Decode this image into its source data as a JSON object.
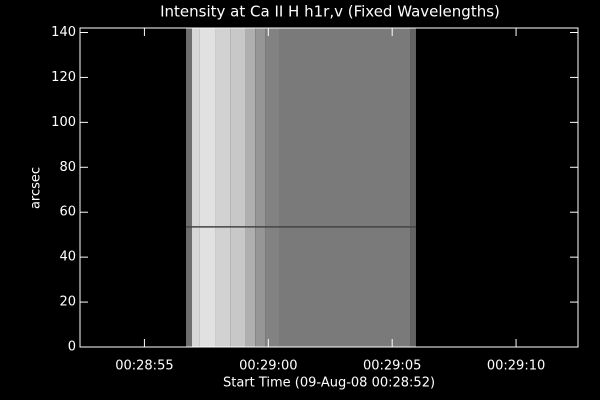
{
  "chart_data": {
    "type": "image",
    "title": "Intensity at Ca II H h1r,v (Fixed Wavelengths)",
    "xlabel": "Start Time (09-Aug-08 00:28:52)",
    "ylabel": "arcsec",
    "xlim": [
      0.4,
      20.5
    ],
    "xticks": [
      {
        "value": 3,
        "label": "00:28:55"
      },
      {
        "value": 8,
        "label": "00:29:00"
      },
      {
        "value": 13,
        "label": "00:29:05"
      },
      {
        "value": 18,
        "label": "00:29:10"
      }
    ],
    "ylim": [
      0,
      142
    ],
    "yticks": [
      0,
      20,
      40,
      60,
      80,
      100,
      120,
      140
    ],
    "x_edges": [
      4.68,
      4.92,
      5.24,
      5.85,
      6.46,
      7.06,
      7.47,
      7.87,
      8.47,
      13.72,
      13.96
    ],
    "intensity": [
      110,
      215,
      225,
      210,
      200,
      175,
      150,
      130,
      122,
      100
    ],
    "ink_color": "#ffffff",
    "background": "#000000"
  }
}
